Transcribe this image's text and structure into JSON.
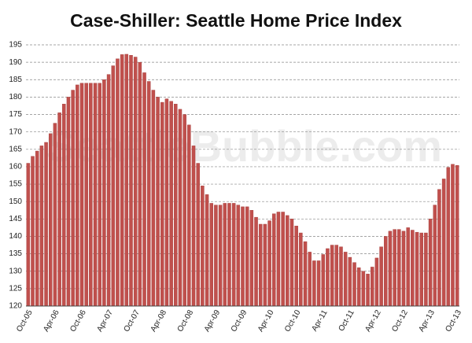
{
  "chart_data": {
    "type": "bar",
    "title": "Case-Shiller: Seattle Home Price Index",
    "watermark": "SeattleBubble.com",
    "color": "#c0504d",
    "grid": true,
    "ylim": [
      120,
      195
    ],
    "yticks": [
      120,
      125,
      130,
      135,
      140,
      145,
      150,
      155,
      160,
      165,
      170,
      175,
      180,
      185,
      190,
      195
    ],
    "categories": [
      "Oct-05",
      null,
      null,
      null,
      null,
      null,
      "Apr-06",
      null,
      null,
      null,
      null,
      null,
      "Oct-06",
      null,
      null,
      null,
      null,
      null,
      "Apr-07",
      null,
      null,
      null,
      null,
      null,
      "Oct-07",
      null,
      null,
      null,
      null,
      null,
      "Apr-08",
      null,
      null,
      null,
      null,
      null,
      "Oct-08",
      null,
      null,
      null,
      null,
      null,
      "Apr-09",
      null,
      null,
      null,
      null,
      null,
      "Oct-09",
      null,
      null,
      null,
      null,
      null,
      "Apr-10",
      null,
      null,
      null,
      null,
      null,
      "Oct-10",
      null,
      null,
      null,
      null,
      null,
      "Apr-11",
      null,
      null,
      null,
      null,
      null,
      "Oct-11",
      null,
      null,
      null,
      null,
      null,
      "Apr-12",
      null,
      null,
      null,
      null,
      null,
      "Oct-12",
      null,
      null,
      null,
      null,
      null,
      "Apr-13",
      null,
      null,
      null,
      null,
      null,
      "Oct-13"
    ],
    "values": [
      161,
      163,
      164.5,
      166,
      167,
      169.5,
      172.5,
      175.5,
      178,
      180,
      182,
      183.5,
      184,
      184,
      184,
      184,
      184,
      185,
      186.5,
      189,
      191,
      192.2,
      192.3,
      192,
      191.5,
      190,
      187,
      184.5,
      182,
      180,
      178.5,
      179.5,
      178.8,
      178,
      176.5,
      175,
      172,
      166,
      161,
      154.5,
      152,
      149.5,
      149,
      149,
      149.5,
      149.5,
      149.5,
      149,
      148.5,
      148.5,
      147.5,
      145.5,
      143.5,
      143.5,
      144.5,
      146.5,
      147,
      147,
      146,
      145,
      143,
      141,
      138.5,
      135.5,
      133,
      133,
      134.8,
      136.5,
      137.5,
      137.5,
      137,
      135.5,
      134,
      132.5,
      131,
      130,
      129.2,
      131.2,
      133.8,
      137,
      140,
      141.5,
      142,
      142,
      141.5,
      142.5,
      141.8,
      141.2,
      141,
      141,
      145,
      149,
      153.5,
      156.5,
      159.8,
      160.7,
      160.4
    ]
  }
}
